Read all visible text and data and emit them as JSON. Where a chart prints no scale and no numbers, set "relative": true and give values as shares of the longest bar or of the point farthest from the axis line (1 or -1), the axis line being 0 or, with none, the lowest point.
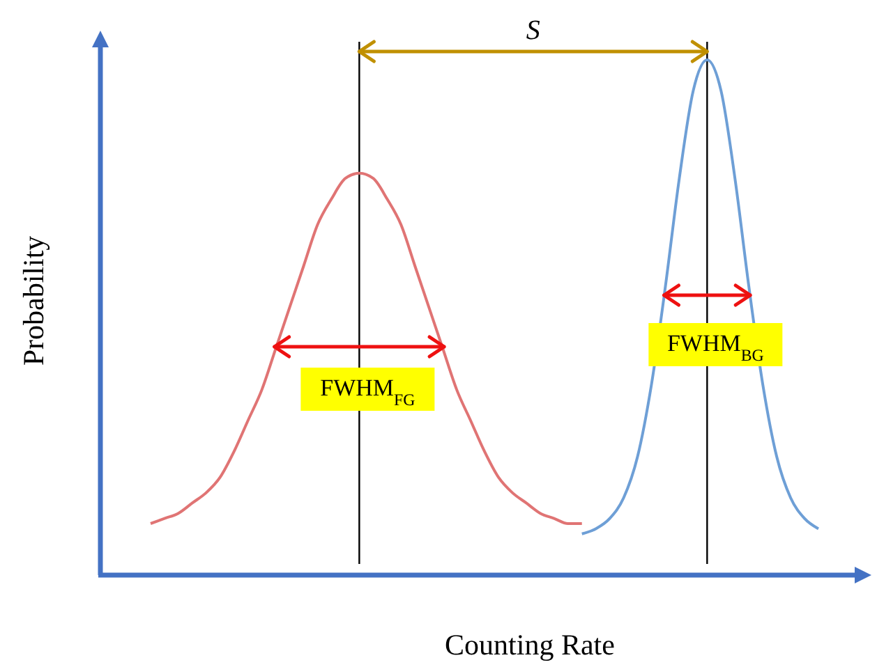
{
  "chart_data": {
    "type": "line",
    "relative": true,
    "xlabel": "Counting Rate",
    "ylabel": "Probability",
    "marker": "none",
    "line_style": "solid",
    "categories": [
      null,
      null,
      null,
      null,
      null,
      null,
      null,
      null,
      null,
      null,
      null,
      null,
      null,
      null,
      null,
      null,
      null,
      null,
      null,
      null,
      null,
      null,
      null,
      null,
      null,
      null,
      null,
      null,
      null,
      null,
      null,
      null,
      null,
      null,
      null,
      null,
      null,
      null,
      null,
      null,
      null,
      null,
      null,
      null,
      null,
      null,
      null,
      null,
      null
    ],
    "series": [
      {
        "color": "#e07474",
        "values": [
          0.1,
          0.11,
          0.12,
          0.14,
          0.16,
          0.19,
          0.24,
          0.3,
          0.36,
          0.44,
          0.52,
          0.6,
          0.68,
          0.73,
          0.77,
          0.78,
          0.77,
          0.73,
          0.68,
          0.6,
          0.52,
          0.44,
          0.36,
          0.3,
          0.24,
          0.19,
          0.16,
          0.14,
          0.12,
          0.11,
          0.1,
          0.1,
          null,
          null,
          null,
          null,
          null,
          null,
          null,
          null,
          null,
          null,
          null,
          null,
          null,
          null,
          null,
          null,
          null
        ]
      },
      {
        "color": "#6e9fd6",
        "values": [
          null,
          null,
          null,
          null,
          null,
          null,
          null,
          null,
          null,
          null,
          null,
          null,
          null,
          null,
          null,
          null,
          null,
          null,
          null,
          null,
          null,
          null,
          null,
          null,
          null,
          null,
          null,
          null,
          null,
          null,
          null,
          0.08,
          0.09,
          0.11,
          0.15,
          0.23,
          0.37,
          0.56,
          0.77,
          0.94,
          1.0,
          0.94,
          0.77,
          0.56,
          0.37,
          0.23,
          0.15,
          0.11,
          0.09
        ]
      }
    ],
    "annotations": [
      "S",
      "FWHM$_{FG}$",
      "FWHM$_{BG}$"
    ]
  }
}
